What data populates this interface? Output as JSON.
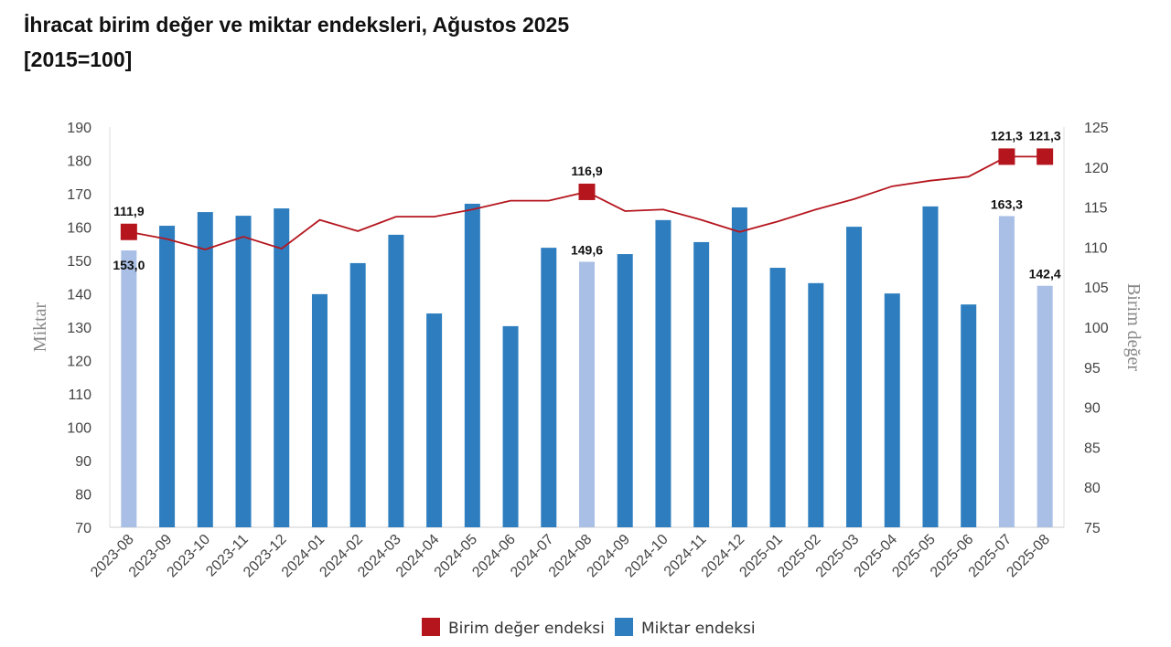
{
  "chart_data": {
    "type": "bar+line",
    "title": "İhracat birim değer ve miktar endeksleri, Ağustos 2025",
    "subtitle": "[2015=100]",
    "categories": [
      "2023-08",
      "2023-09",
      "2023-10",
      "2023-11",
      "2023-12",
      "2024-01",
      "2024-02",
      "2024-03",
      "2024-04",
      "2024-05",
      "2024-06",
      "2024-07",
      "2024-08",
      "2024-09",
      "2024-10",
      "2024-11",
      "2024-12",
      "2025-01",
      "2025-02",
      "2025-03",
      "2025-04",
      "2025-05",
      "2025-06",
      "2025-07",
      "2025-08"
    ],
    "series": [
      {
        "name": "Miktar endeksi",
        "type": "bar",
        "axis": "left",
        "color": "#2e7ebf",
        "highlight_color": "#a9bfe6",
        "highlight_indices": [
          0,
          12,
          23,
          24
        ],
        "values": [
          153.0,
          160.4,
          164.5,
          163.4,
          165.6,
          139.9,
          149.2,
          157.7,
          134.1,
          167.0,
          130.3,
          153.8,
          149.6,
          151.9,
          162.1,
          155.5,
          165.9,
          147.8,
          143.2,
          160.1,
          140.1,
          166.2,
          136.8,
          163.3,
          142.4
        ],
        "data_labels": {
          "0": "153,0",
          "12": "149,6",
          "23": "163,3",
          "24": "142,4"
        }
      },
      {
        "name": "Birim değer endeksi",
        "type": "line",
        "axis": "right",
        "color": "#b5161e",
        "marker_indices": [
          0,
          12,
          23,
          24
        ],
        "values": [
          111.9,
          111.0,
          109.7,
          111.3,
          109.8,
          113.4,
          112.0,
          113.8,
          113.8,
          114.7,
          115.8,
          115.8,
          116.9,
          114.5,
          114.7,
          113.4,
          111.9,
          113.2,
          114.7,
          116.0,
          117.6,
          118.3,
          118.8,
          121.3,
          121.3
        ],
        "data_labels": {
          "0": "111,9",
          "12": "116,9",
          "23": "121,3",
          "24": "121,3"
        }
      }
    ],
    "ylabel": "Miktar",
    "ylim": [
      70,
      190
    ],
    "yticks": [
      70,
      80,
      90,
      100,
      110,
      120,
      130,
      140,
      150,
      160,
      170,
      180,
      190
    ],
    "y2label": "Birim değer",
    "y2lim": [
      75,
      125
    ],
    "y2ticks": [
      75,
      80,
      85,
      90,
      95,
      100,
      105,
      110,
      115,
      120,
      125
    ],
    "legend": [
      "Birim değer endeksi",
      "Miktar endeksi"
    ],
    "legend_position": "bottom",
    "grid": false
  }
}
